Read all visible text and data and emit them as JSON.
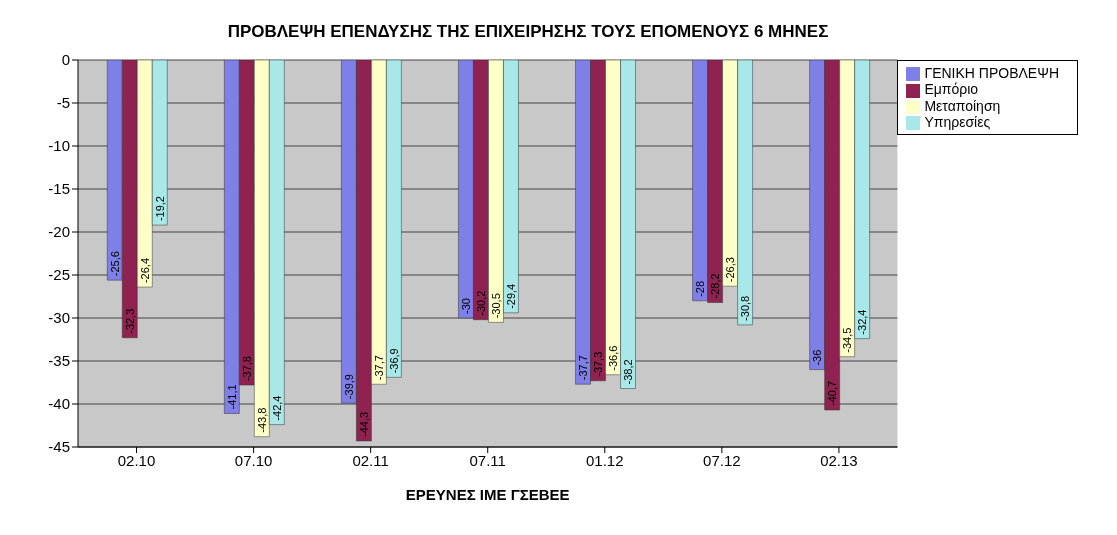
{
  "chart_data": {
    "type": "bar",
    "title": "ΠΡΟΒΛΕΨΗ ΕΠΕΝΔΥΣΗΣ ΤΗΣ ΕΠΙΧΕΙΡΗΣΗΣ ΤΟΥΣ ΕΠΟΜΕΝΟΥΣ 6 ΜΗΝΕΣ",
    "xlabel": "ΕΡΕΥΝΕΣ ΙΜΕ ΓΣΕΒΕΕ",
    "categories": [
      "02.10",
      "07.10",
      "02.11",
      "07.11",
      "01.12",
      "07.12",
      "02.13"
    ],
    "series": [
      {
        "name": "ΓΕΝΙΚΗ ΠΡΟΒΛΕΨΗ",
        "color": "#7f7fe8",
        "values": [
          -25.6,
          -41.1,
          -39.9,
          -30,
          -37.7,
          -28,
          -36
        ],
        "value_labels": [
          "-25,6",
          "-41,1",
          "-39,9",
          "-30",
          "-37,7",
          "-28",
          "-36"
        ]
      },
      {
        "name": "Εμπόριο",
        "color": "#8f2250",
        "values": [
          -32.3,
          -37.8,
          -44.3,
          -30.2,
          -37.3,
          -28.2,
          -40.7
        ],
        "value_labels": [
          "-32,3",
          "-37,8",
          "-44,3",
          "-30,2",
          "-37,3",
          "-28,2",
          "-40,7"
        ]
      },
      {
        "name": "Μεταποίηση",
        "color": "#ffffc8",
        "values": [
          -26.4,
          -43.8,
          -37.7,
          -30.5,
          -36.6,
          -26.3,
          -34.5
        ],
        "value_labels": [
          "-26,4",
          "-43,8",
          "-37,7",
          "-30,5",
          "-36,6",
          "-26,3",
          "-34,5"
        ]
      },
      {
        "name": "Υπηρεσίες",
        "color": "#a8e8e8",
        "values": [
          -19.2,
          -42.4,
          -36.9,
          -29.4,
          -38.2,
          -30.8,
          -32.4
        ],
        "value_labels": [
          "-19,2",
          "-42,4",
          "-36,9",
          "-29,4",
          "-38,2",
          "-30,8",
          "-32,4"
        ]
      }
    ],
    "ylim": [
      -45,
      0
    ],
    "yticks": [
      0,
      -5,
      -10,
      -15,
      -20,
      -25,
      -30,
      -35,
      -40,
      -45
    ],
    "grid": "y",
    "legend": "top right"
  }
}
